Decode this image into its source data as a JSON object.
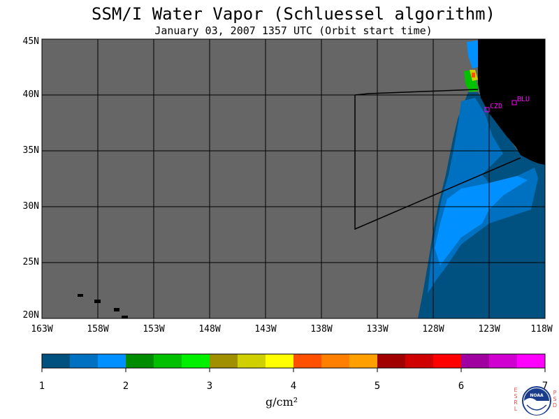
{
  "header": {
    "title": "SSM/I Water Vapor (Schluessel algorithm)",
    "subtitle": "January 03, 2007  1357 UTC  (Orbit start time)"
  },
  "map": {
    "lat_labels": [
      "45N",
      "40N",
      "35N",
      "30N",
      "25N",
      "20N"
    ],
    "lon_labels": [
      "163W",
      "158W",
      "153W",
      "148W",
      "143W",
      "138W",
      "133W",
      "128W",
      "123W",
      "118W"
    ],
    "lat_range": [
      20,
      45
    ],
    "lon_range": [
      -163,
      -118
    ],
    "stations": [
      {
        "code": "CZD",
        "lat": 38.6,
        "lon": -123.2
      },
      {
        "code": "BLU",
        "lat": 39.3,
        "lon": -120.9
      }
    ],
    "colors": {
      "no_data": "#666666",
      "land": "#000000",
      "grid": "#000000"
    }
  },
  "colorbar": {
    "tick_labels": [
      "1",
      "2",
      "3",
      "4",
      "5",
      "6",
      "7"
    ],
    "unit_label": "g/cm²",
    "colors": [
      "#005080",
      "#0070c0",
      "#0090ff",
      "#008c00",
      "#00c000",
      "#00f000",
      "#a09000",
      "#d0d000",
      "#ffff00",
      "#ff5000",
      "#ff8000",
      "#ffa000",
      "#a00000",
      "#d00000",
      "#ff0000",
      "#a000a0",
      "#d000d0",
      "#ff00ff"
    ]
  },
  "logo": {
    "left_letters": "ESRL",
    "right_letters": "PSD",
    "center_text": "NOAA"
  }
}
